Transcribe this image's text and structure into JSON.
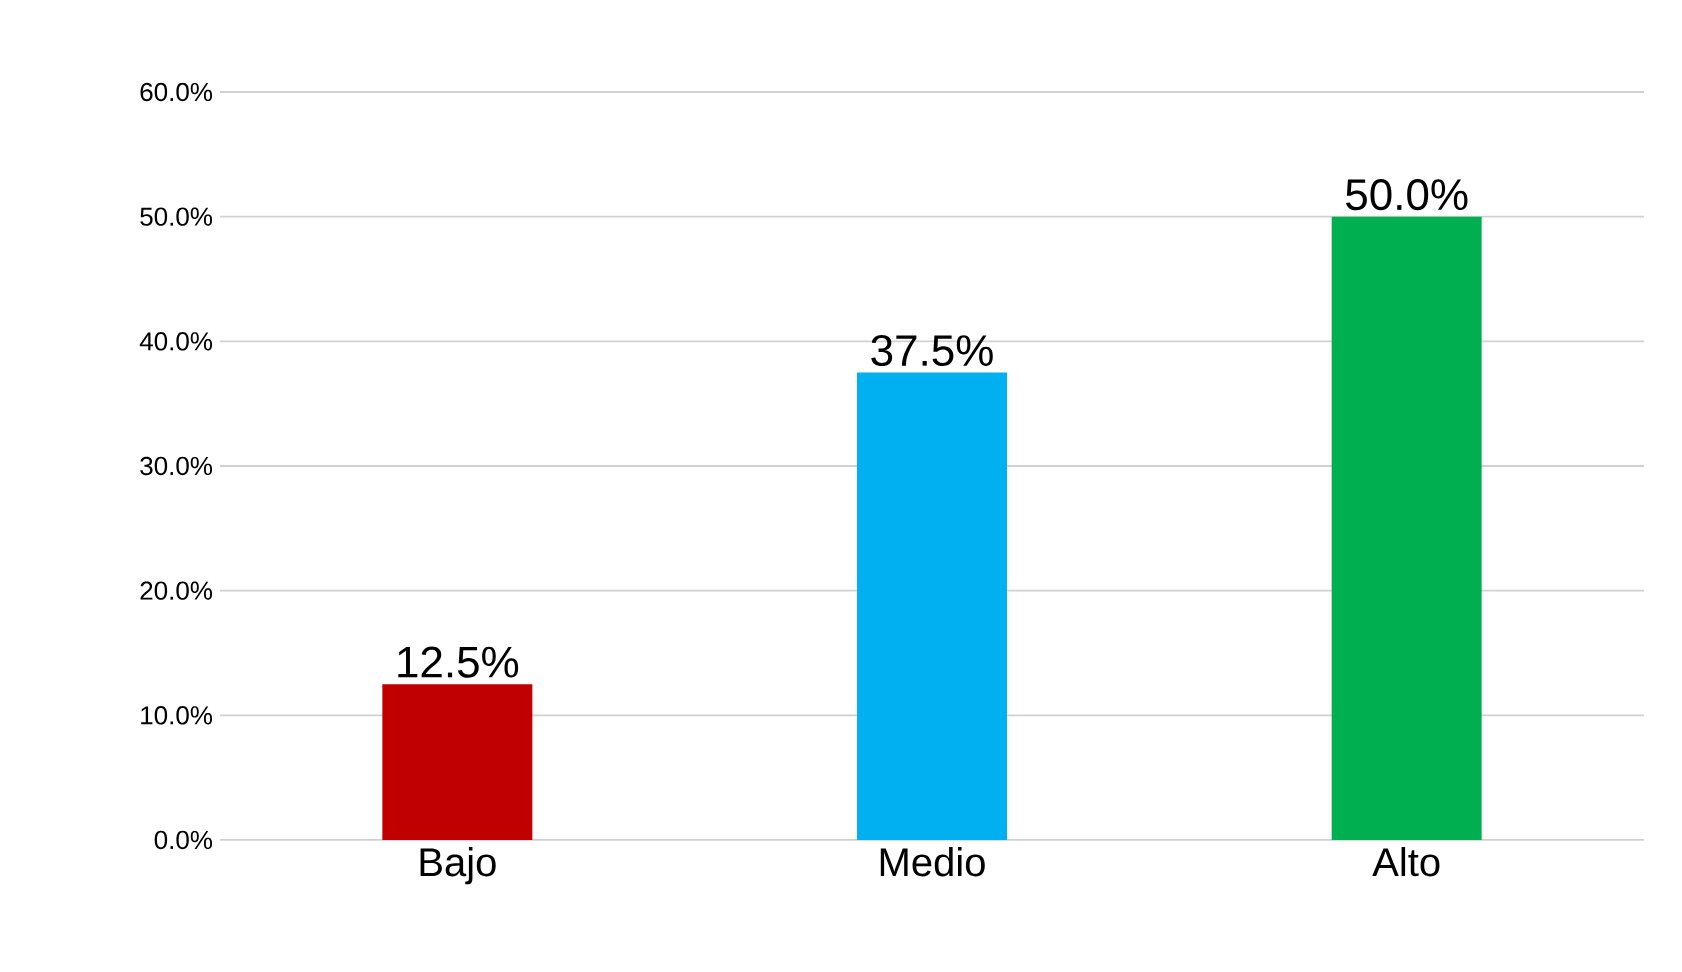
{
  "chart_data": {
    "type": "bar",
    "categories": [
      "Bajo",
      "Medio",
      "Alto"
    ],
    "values": [
      12.5,
      37.5,
      50.0
    ],
    "colors": [
      "#c00000",
      "#00b0f0",
      "#00b050"
    ],
    "value_labels": [
      "12.5%",
      "37.5%",
      "50.0%"
    ],
    "ylim": [
      0,
      60
    ],
    "yticks": [
      {
        "value": 0,
        "label": "0.0%"
      },
      {
        "value": 10,
        "label": "10.0%"
      },
      {
        "value": 20,
        "label": "20.0%"
      },
      {
        "value": 30,
        "label": "30.0%"
      },
      {
        "value": 40,
        "label": "40.0%"
      },
      {
        "value": 50,
        "label": "50.0%"
      },
      {
        "value": 60,
        "label": "60.0%"
      }
    ],
    "grid": "y"
  }
}
